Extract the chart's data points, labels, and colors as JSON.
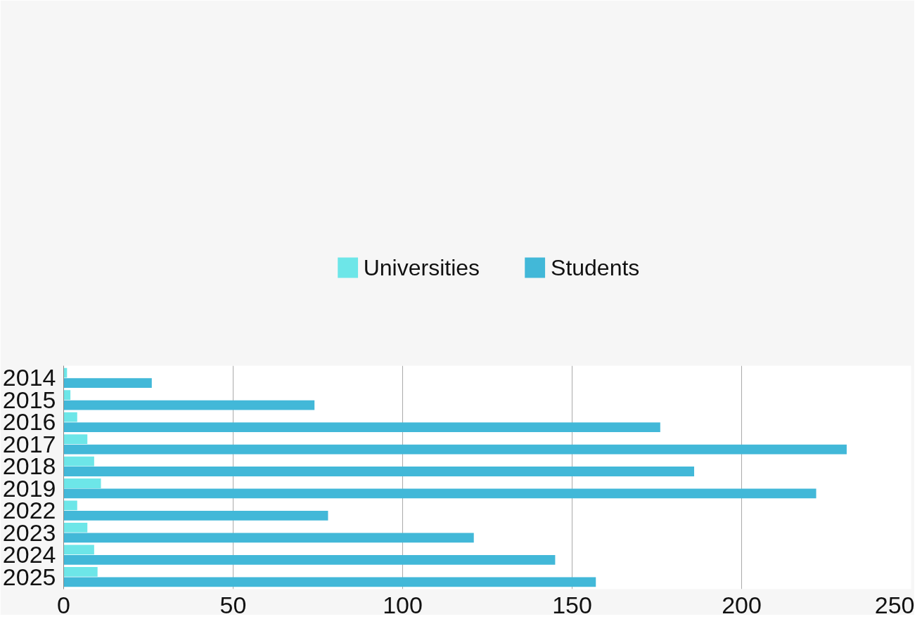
{
  "chart_data": {
    "type": "bar",
    "orientation": "horizontal",
    "categories": [
      "2014",
      "2015",
      "2016",
      "2017",
      "2018",
      "2019",
      "2022",
      "2023",
      "2024",
      "2025"
    ],
    "series": [
      {
        "name": "Universities",
        "color": "#6de6e8",
        "values": [
          1,
          2,
          4,
          7,
          9,
          11,
          4,
          7,
          9,
          10
        ]
      },
      {
        "name": "Students",
        "color": "#42b8d8",
        "values": [
          26,
          74,
          176,
          231,
          186,
          222,
          78,
          121,
          145,
          157
        ]
      }
    ],
    "xlim": [
      0,
      250
    ],
    "xticks": [
      0,
      50,
      100,
      150,
      200,
      250
    ],
    "grid": "x",
    "legend": "top"
  }
}
